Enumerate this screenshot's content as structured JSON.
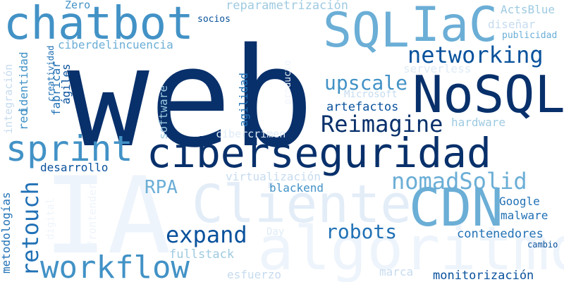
{
  "colors": {
    "darkest": "#08306b",
    "dark": "#08519c",
    "mid_dark": "#2171b5",
    "mid": "#4292c6",
    "light_mid": "#6baed6",
    "light": "#9ecae1",
    "lighter": "#c6dbef",
    "lightest": "#deebf7",
    "faint": "#eef4fb"
  },
  "words": {
    "web": "web",
    "ciberseguridad": "ciberseguridad",
    "nosql": "NoSQL",
    "chatbot": "chatbot",
    "sql": "SQL",
    "iac": "IaC",
    "ia": "IA",
    "cliente": "Cliente",
    "cdn": "CDN",
    "algoritmo": "algoritmo",
    "sprint": "sprint",
    "workflow": "workflow",
    "networking": "networking",
    "reimagine": "Reimagine",
    "upscale": "upscale",
    "nomadsolid": "nomadSolid",
    "expand": "expand",
    "robots": "robots",
    "retouch": "retouch",
    "rpa": "RPA",
    "artefactos": "artefactos",
    "zero": "Zero",
    "reparametrizacion": "reparametrización",
    "actsblue": "ActsBlue",
    "socios": "socios",
    "disenar": "diseñar",
    "publicidad": "publicidad",
    "ciberdelincuencia": "ciberdelincuencia",
    "serverless": "serverless",
    "microsoft": "Microsoft",
    "hardware": "hardware",
    "cibercrimen": "cibercrimen",
    "desarrollo": "desarrollo",
    "virtualizacion": "virtualización",
    "blackend": "blackend",
    "google": "Google",
    "malware": "malware",
    "contenedores": "contenedores",
    "cambio": "cambio",
    "fullstack": "fullstack",
    "day": "Day",
    "esfuerzo": "esfuerzo",
    "marca": "marca",
    "monitorizacion": "monitorización",
    "metodologias": "metodologías",
    "integracion": "integración",
    "red": "red",
    "identidad": "identidad",
    "creatividad": "creatividad",
    "fabricar": "fabricar",
    "agiles": "ágiles",
    "agilidad": "agilidad",
    "software": "software",
    "producto": "producto",
    "digital": "digital",
    "frontender": "frontender"
  }
}
